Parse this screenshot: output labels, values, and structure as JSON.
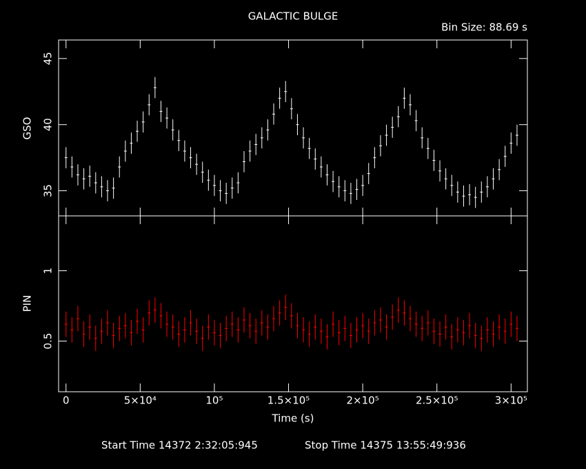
{
  "chart_data": [
    {
      "type": "errorbar",
      "title": "GALACTIC BULGE",
      "subtitle": "Bin Size: 88.69 s",
      "y_label": "GSO",
      "xlim": [
        -5000,
        311000
      ],
      "xticks": [
        0,
        50000,
        100000,
        150000,
        200000,
        250000,
        300000
      ],
      "ylim": [
        33.1,
        46.4
      ],
      "yticks": [
        35,
        40,
        45
      ],
      "x": [
        0,
        4000,
        8000,
        12000,
        16000,
        20000,
        24000,
        28000,
        32000,
        36000,
        40000,
        44000,
        48000,
        52000,
        56000,
        60000,
        64000,
        68000,
        72000,
        76000,
        80000,
        84000,
        88000,
        92000,
        96000,
        100000,
        104000,
        108000,
        112000,
        116000,
        120000,
        124000,
        128000,
        132000,
        136000,
        140000,
        144000,
        148000,
        152000,
        156000,
        160000,
        164000,
        168000,
        172000,
        176000,
        180000,
        184000,
        188000,
        192000,
        196000,
        200000,
        204000,
        208000,
        212000,
        216000,
        220000,
        224000,
        228000,
        232000,
        236000,
        240000,
        244000,
        248000,
        252000,
        256000,
        260000,
        264000,
        268000,
        272000,
        276000,
        280000,
        284000,
        288000,
        292000,
        296000,
        300000,
        304000
      ],
      "series": [
        {
          "name": "GSO",
          "color": "#ffffff",
          "error": 0.8,
          "values": [
            37.5,
            36.8,
            36.2,
            35.9,
            36.1,
            35.6,
            35.3,
            35.0,
            35.2,
            36.8,
            38.0,
            38.6,
            39.5,
            40.2,
            41.5,
            42.8,
            41.0,
            40.5,
            39.6,
            38.8,
            38.0,
            37.5,
            37.0,
            36.4,
            35.8,
            35.4,
            35.0,
            34.8,
            35.2,
            35.6,
            37.2,
            38.0,
            38.5,
            39.0,
            39.6,
            40.8,
            42.0,
            42.5,
            41.2,
            40.0,
            39.0,
            38.2,
            37.4,
            36.8,
            36.2,
            35.7,
            35.3,
            35.0,
            34.8,
            35.1,
            35.4,
            36.3,
            37.5,
            38.4,
            39.2,
            39.8,
            40.6,
            42.0,
            41.5,
            40.3,
            39.0,
            38.2,
            37.3,
            36.5,
            35.9,
            35.4,
            34.9,
            34.6,
            34.7,
            34.5,
            34.9,
            35.3,
            35.9,
            36.6,
            37.6,
            38.6,
            39.2
          ]
        }
      ]
    },
    {
      "type": "errorbar",
      "y_label": "PIN",
      "x_label": "Time (s)",
      "footer_start": "Start Time 14372  2:32:05:945",
      "footer_stop": "Stop Time 14375 13:55:49:936",
      "xlim": [
        -5000,
        311000
      ],
      "xticks": [
        0,
        {
          "value": 50000,
          "label": "5×10⁴"
        },
        {
          "value": 100000,
          "label": "10⁵"
        },
        {
          "value": 150000,
          "label": "1.5×10⁵"
        },
        {
          "value": 200000,
          "label": "2×10⁵"
        },
        {
          "value": 250000,
          "label": "2.5×10⁵"
        },
        {
          "value": 300000,
          "label": "3×10⁵"
        }
      ],
      "ylim": [
        0.14,
        1.39
      ],
      "yticks": [
        0.5,
        1
      ],
      "x": [
        0,
        4000,
        8000,
        12000,
        16000,
        20000,
        24000,
        28000,
        32000,
        36000,
        40000,
        44000,
        48000,
        52000,
        56000,
        60000,
        64000,
        68000,
        72000,
        76000,
        80000,
        84000,
        88000,
        92000,
        96000,
        100000,
        104000,
        108000,
        112000,
        116000,
        120000,
        124000,
        128000,
        132000,
        136000,
        140000,
        144000,
        148000,
        152000,
        156000,
        160000,
        164000,
        168000,
        172000,
        176000,
        180000,
        184000,
        188000,
        192000,
        196000,
        200000,
        204000,
        208000,
        212000,
        216000,
        220000,
        224000,
        228000,
        232000,
        236000,
        240000,
        244000,
        248000,
        252000,
        256000,
        260000,
        264000,
        268000,
        272000,
        276000,
        280000,
        284000,
        288000,
        292000,
        296000,
        300000,
        304000
      ],
      "series": [
        {
          "name": "PIN",
          "color": "#ff0000",
          "error": 0.09,
          "values": [
            0.62,
            0.58,
            0.66,
            0.55,
            0.6,
            0.52,
            0.57,
            0.63,
            0.54,
            0.59,
            0.61,
            0.56,
            0.64,
            0.58,
            0.7,
            0.72,
            0.68,
            0.62,
            0.6,
            0.55,
            0.58,
            0.63,
            0.57,
            0.52,
            0.6,
            0.56,
            0.54,
            0.59,
            0.62,
            0.58,
            0.65,
            0.61,
            0.57,
            0.63,
            0.6,
            0.66,
            0.7,
            0.74,
            0.68,
            0.61,
            0.58,
            0.55,
            0.6,
            0.57,
            0.53,
            0.62,
            0.56,
            0.59,
            0.54,
            0.58,
            0.61,
            0.57,
            0.63,
            0.65,
            0.6,
            0.67,
            0.72,
            0.7,
            0.66,
            0.62,
            0.59,
            0.63,
            0.57,
            0.55,
            0.6,
            0.53,
            0.58,
            0.56,
            0.61,
            0.54,
            0.52,
            0.58,
            0.55,
            0.6,
            0.57,
            0.62,
            0.59
          ]
        }
      ]
    }
  ]
}
